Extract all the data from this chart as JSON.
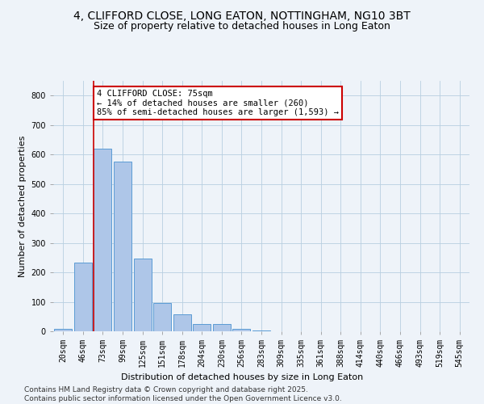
{
  "title_line1": "4, CLIFFORD CLOSE, LONG EATON, NOTTINGHAM, NG10 3BT",
  "title_line2": "Size of property relative to detached houses in Long Eaton",
  "xlabel": "Distribution of detached houses by size in Long Eaton",
  "ylabel": "Number of detached properties",
  "categories": [
    "20sqm",
    "46sqm",
    "73sqm",
    "99sqm",
    "125sqm",
    "151sqm",
    "178sqm",
    "204sqm",
    "230sqm",
    "256sqm",
    "283sqm",
    "309sqm",
    "335sqm",
    "361sqm",
    "388sqm",
    "414sqm",
    "440sqm",
    "466sqm",
    "493sqm",
    "519sqm",
    "545sqm"
  ],
  "values": [
    8,
    232,
    620,
    575,
    248,
    97,
    57,
    25,
    25,
    7,
    2,
    0,
    0,
    0,
    0,
    0,
    0,
    0,
    0,
    0,
    0
  ],
  "bar_color": "#aec6e8",
  "bar_edge_color": "#5b9bd5",
  "vline_x_index": 2,
  "annotation_text_line1": "4 CLIFFORD CLOSE: 75sqm",
  "annotation_text_line2": "← 14% of detached houses are smaller (260)",
  "annotation_text_line3": "85% of semi-detached houses are larger (1,593) →",
  "annotation_box_color": "#ffffff",
  "annotation_box_edge_color": "#cc0000",
  "vline_color": "#cc0000",
  "ylim": [
    0,
    850
  ],
  "yticks": [
    0,
    100,
    200,
    300,
    400,
    500,
    600,
    700,
    800
  ],
  "background_color": "#eef3f9",
  "footer_line1": "Contains HM Land Registry data © Crown copyright and database right 2025.",
  "footer_line2": "Contains public sector information licensed under the Open Government Licence v3.0.",
  "title_fontsize": 10,
  "subtitle_fontsize": 9,
  "axis_label_fontsize": 8,
  "tick_fontsize": 7,
  "annotation_fontsize": 7.5,
  "footer_fontsize": 6.5
}
